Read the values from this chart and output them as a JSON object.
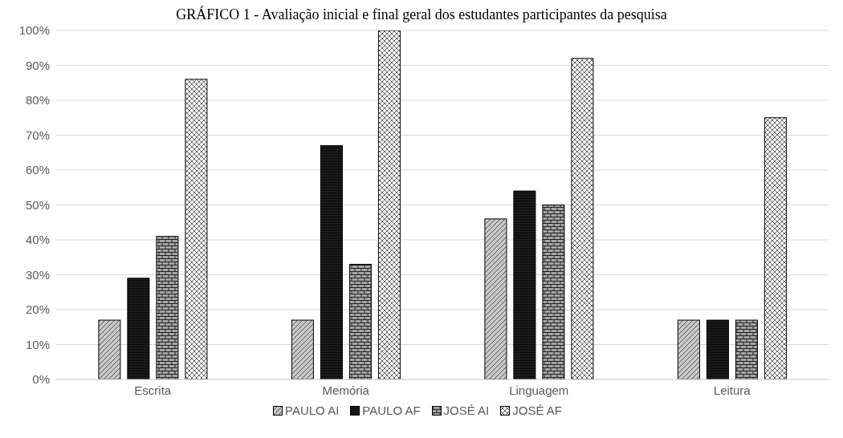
{
  "chart_data": {
    "type": "bar",
    "title": "GRÁFICO 1 - Avaliação inicial e final geral dos estudantes participantes da pesquisa",
    "categories": [
      "Escrita",
      "Memória",
      "Linguagem",
      "Leitura"
    ],
    "series": [
      {
        "name": "PAULO AI",
        "color": "#c8c8c8",
        "values": [
          17,
          17,
          46,
          17
        ]
      },
      {
        "name": "PAULO AF",
        "color": "#3c3c3c",
        "values": [
          29,
          67,
          54,
          17
        ]
      },
      {
        "name": "JOSÉ AI",
        "color": "#a6a6a6",
        "values": [
          41,
          33,
          50,
          17
        ]
      },
      {
        "name": "JOSÉ AF",
        "color": "#ffffff",
        "values": [
          86,
          100,
          92,
          75
        ]
      }
    ],
    "ylim": [
      0,
      100
    ],
    "yticks": [
      {
        "value": 0,
        "label": "0%"
      },
      {
        "value": 10,
        "label": "10%"
      },
      {
        "value": 20,
        "label": "20%"
      },
      {
        "value": 30,
        "label": "30%"
      },
      {
        "value": 40,
        "label": "40%"
      },
      {
        "value": 50,
        "label": "50%"
      },
      {
        "value": 60,
        "label": "60%"
      },
      {
        "value": 70,
        "label": "70%"
      },
      {
        "value": 80,
        "label": "80%"
      },
      {
        "value": 90,
        "label": "90%"
      },
      {
        "value": 100,
        "label": "100%"
      }
    ],
    "grid": "y",
    "legend": "bottom"
  }
}
